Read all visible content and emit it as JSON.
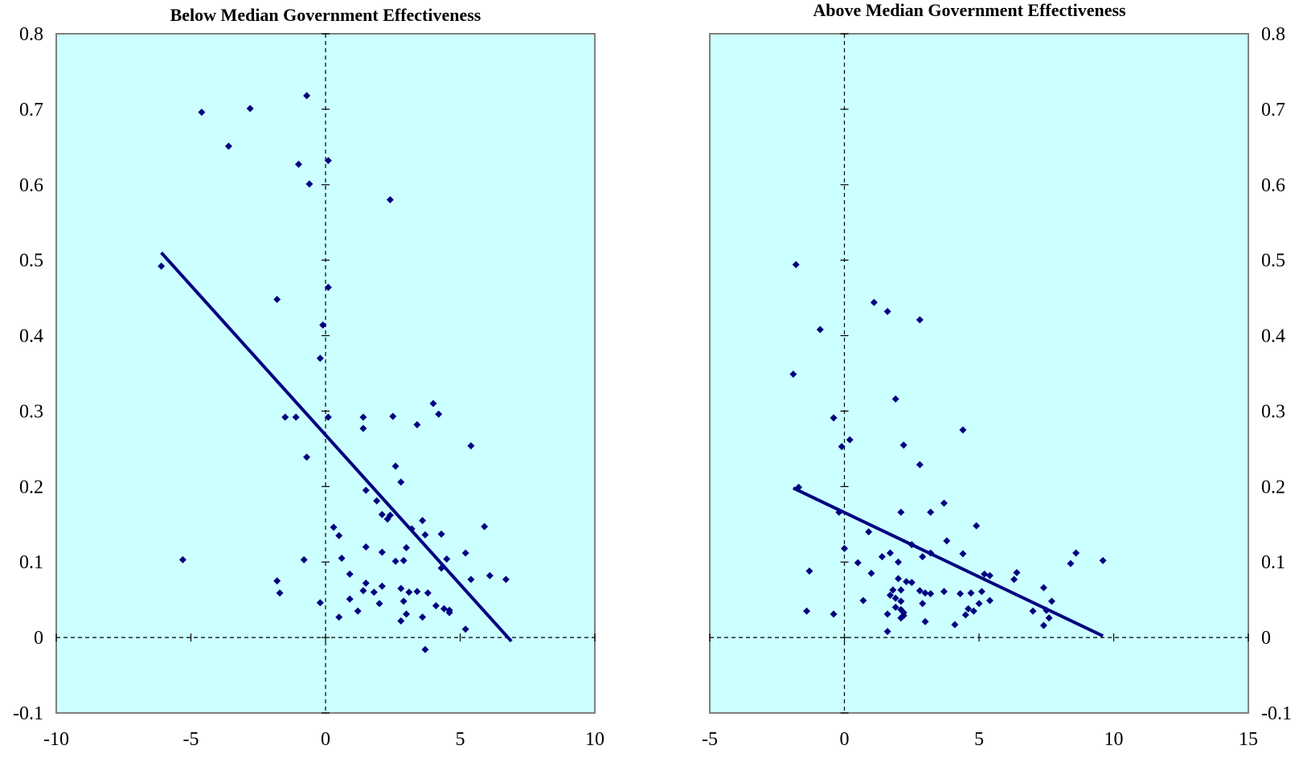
{
  "colors": {
    "plot_background": "#ccffff",
    "marker": "#000080",
    "trend_line": "#000080",
    "frame": "#808080"
  },
  "chart_data": [
    {
      "type": "scatter",
      "title": "Below Median Government Effectiveness",
      "xlabel": "",
      "ylabel": "",
      "xlim": [
        -10,
        10
      ],
      "ylim": [
        -0.1,
        0.8
      ],
      "x_ticks": [
        "-10",
        "-5",
        "0",
        "5",
        "10"
      ],
      "y_ticks": [
        "-0.1",
        "0",
        "0.1",
        "0.2",
        "0.3",
        "0.4",
        "0.5",
        "0.6",
        "0.7",
        "0.8"
      ],
      "y_axis_side": "left",
      "grid": false,
      "reference_lines": {
        "x": 0,
        "y": 0,
        "style": "dashed"
      },
      "trend_line": {
        "x1": -6.1,
        "y1": 0.51,
        "x2": 6.9,
        "y2": -0.005
      },
      "points": [
        [
          -4.6,
          0.696
        ],
        [
          -2.8,
          0.701
        ],
        [
          -0.7,
          0.718
        ],
        [
          -3.6,
          0.651
        ],
        [
          -1.0,
          0.627
        ],
        [
          -0.6,
          0.601
        ],
        [
          0.1,
          0.632
        ],
        [
          2.4,
          0.58
        ],
        [
          -6.1,
          0.492
        ],
        [
          0.1,
          0.464
        ],
        [
          -1.8,
          0.448
        ],
        [
          -0.1,
          0.414
        ],
        [
          -0.2,
          0.37
        ],
        [
          -1.5,
          0.292
        ],
        [
          -1.1,
          0.292
        ],
        [
          0.1,
          0.292
        ],
        [
          1.4,
          0.292
        ],
        [
          2.5,
          0.293
        ],
        [
          4.0,
          0.31
        ],
        [
          4.2,
          0.296
        ],
        [
          3.4,
          0.282
        ],
        [
          1.4,
          0.277
        ],
        [
          5.4,
          0.254
        ],
        [
          -0.7,
          0.239
        ],
        [
          2.6,
          0.227
        ],
        [
          2.8,
          0.206
        ],
        [
          1.5,
          0.195
        ],
        [
          1.9,
          0.181
        ],
        [
          2.1,
          0.163
        ],
        [
          2.3,
          0.157
        ],
        [
          2.4,
          0.162
        ],
        [
          3.6,
          0.155
        ],
        [
          0.3,
          0.146
        ],
        [
          0.5,
          0.135
        ],
        [
          3.2,
          0.144
        ],
        [
          3.7,
          0.136
        ],
        [
          4.3,
          0.137
        ],
        [
          5.9,
          0.147
        ],
        [
          1.5,
          0.12
        ],
        [
          2.1,
          0.113
        ],
        [
          3.0,
          0.119
        ],
        [
          -0.8,
          0.103
        ],
        [
          0.6,
          0.105
        ],
        [
          2.6,
          0.101
        ],
        [
          2.9,
          0.102
        ],
        [
          4.5,
          0.104
        ],
        [
          5.2,
          0.112
        ],
        [
          -5.3,
          0.103
        ],
        [
          4.3,
          0.092
        ],
        [
          0.9,
          0.084
        ],
        [
          6.1,
          0.082
        ],
        [
          6.7,
          0.077
        ],
        [
          -1.8,
          0.075
        ],
        [
          1.5,
          0.072
        ],
        [
          1.4,
          0.062
        ],
        [
          1.8,
          0.06
        ],
        [
          2.1,
          0.068
        ],
        [
          2.8,
          0.065
        ],
        [
          3.1,
          0.06
        ],
        [
          3.4,
          0.061
        ],
        [
          3.8,
          0.059
        ],
        [
          5.4,
          0.077
        ],
        [
          -1.7,
          0.059
        ],
        [
          -0.2,
          0.046
        ],
        [
          0.9,
          0.051
        ],
        [
          2.0,
          0.045
        ],
        [
          2.9,
          0.048
        ],
        [
          4.1,
          0.042
        ],
        [
          4.4,
          0.038
        ],
        [
          4.6,
          0.033
        ],
        [
          4.6,
          0.036
        ],
        [
          1.2,
          0.035
        ],
        [
          0.5,
          0.027
        ],
        [
          2.8,
          0.022
        ],
        [
          3.0,
          0.031
        ],
        [
          3.6,
          0.027
        ],
        [
          5.2,
          0.011
        ],
        [
          3.7,
          -0.016
        ]
      ]
    },
    {
      "type": "scatter",
      "title": "Above Median Government Effectiveness",
      "xlabel": "",
      "ylabel": "",
      "xlim": [
        -5,
        15
      ],
      "ylim": [
        -0.1,
        0.8
      ],
      "x_ticks": [
        "-5",
        "0",
        "5",
        "10",
        "15"
      ],
      "y_ticks": [
        "-0.1",
        "0",
        "0.1",
        "0.2",
        "0.3",
        "0.4",
        "0.5",
        "0.6",
        "0.7",
        "0.8"
      ],
      "y_axis_side": "right",
      "grid": false,
      "reference_lines": {
        "x": 0,
        "y": 0,
        "style": "dashed"
      },
      "trend_line": {
        "x1": -1.9,
        "y1": 0.198,
        "x2": 9.6,
        "y2": 0.002
      },
      "points": [
        [
          -1.8,
          0.494
        ],
        [
          -0.9,
          0.408
        ],
        [
          1.1,
          0.444
        ],
        [
          1.6,
          0.432
        ],
        [
          2.8,
          0.421
        ],
        [
          -1.9,
          0.349
        ],
        [
          1.9,
          0.316
        ],
        [
          -0.4,
          0.291
        ],
        [
          4.4,
          0.275
        ],
        [
          0.2,
          0.262
        ],
        [
          -0.1,
          0.253
        ],
        [
          2.2,
          0.255
        ],
        [
          2.8,
          0.229
        ],
        [
          -1.7,
          0.199
        ],
        [
          3.7,
          0.178
        ],
        [
          -0.2,
          0.166
        ],
        [
          2.1,
          0.166
        ],
        [
          3.2,
          0.166
        ],
        [
          4.9,
          0.148
        ],
        [
          0.9,
          0.14
        ],
        [
          2.5,
          0.123
        ],
        [
          3.8,
          0.128
        ],
        [
          0.0,
          0.118
        ],
        [
          1.7,
          0.112
        ],
        [
          3.2,
          0.112
        ],
        [
          1.4,
          0.107
        ],
        [
          2.9,
          0.107
        ],
        [
          4.4,
          0.111
        ],
        [
          8.6,
          0.112
        ],
        [
          9.6,
          0.102
        ],
        [
          8.4,
          0.098
        ],
        [
          0.5,
          0.099
        ],
        [
          2.0,
          0.1
        ],
        [
          -1.3,
          0.088
        ],
        [
          1.0,
          0.085
        ],
        [
          6.4,
          0.086
        ],
        [
          5.2,
          0.084
        ],
        [
          5.4,
          0.082
        ],
        [
          6.3,
          0.077
        ],
        [
          2.0,
          0.078
        ],
        [
          2.3,
          0.074
        ],
        [
          2.5,
          0.073
        ],
        [
          7.4,
          0.066
        ],
        [
          1.8,
          0.063
        ],
        [
          2.1,
          0.063
        ],
        [
          2.8,
          0.062
        ],
        [
          3.0,
          0.059
        ],
        [
          3.2,
          0.058
        ],
        [
          3.7,
          0.061
        ],
        [
          4.3,
          0.058
        ],
        [
          4.7,
          0.059
        ],
        [
          5.1,
          0.061
        ],
        [
          0.7,
          0.049
        ],
        [
          1.9,
          0.052
        ],
        [
          2.1,
          0.048
        ],
        [
          1.7,
          0.056
        ],
        [
          5.4,
          0.049
        ],
        [
          7.7,
          0.048
        ],
        [
          2.9,
          0.045
        ],
        [
          5.0,
          0.045
        ],
        [
          2.1,
          0.037
        ],
        [
          1.9,
          0.04
        ],
        [
          4.6,
          0.038
        ],
        [
          4.8,
          0.035
        ],
        [
          7.0,
          0.035
        ],
        [
          -1.4,
          0.035
        ],
        [
          -0.4,
          0.031
        ],
        [
          1.6,
          0.031
        ],
        [
          2.2,
          0.033
        ],
        [
          4.5,
          0.03
        ],
        [
          2.1,
          0.026
        ],
        [
          7.6,
          0.026
        ],
        [
          3.0,
          0.021
        ],
        [
          4.1,
          0.017
        ],
        [
          7.4,
          0.016
        ],
        [
          1.6,
          0.008
        ],
        [
          7.5,
          0.036
        ],
        [
          2.2,
          0.029
        ]
      ]
    }
  ]
}
